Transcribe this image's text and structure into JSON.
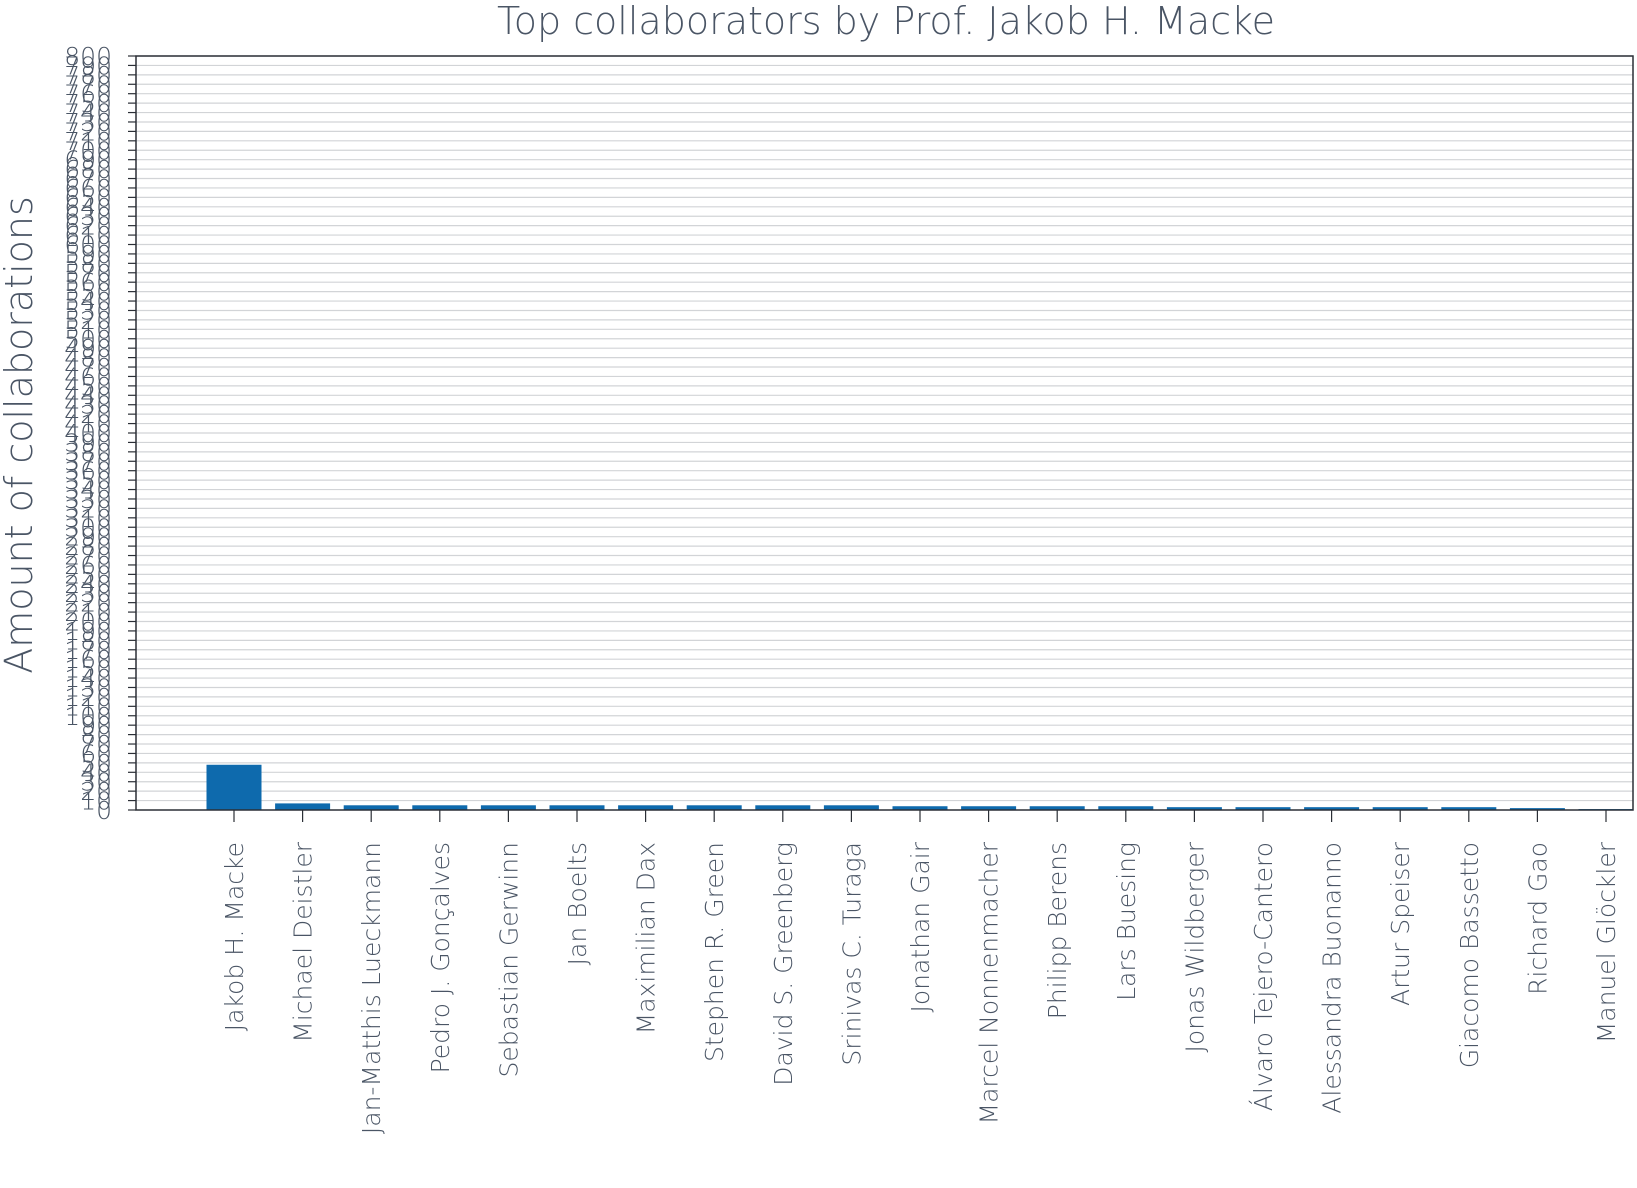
{
  "chart_data": {
    "type": "bar",
    "title": "Top collaborators by Prof. Jakob H. Macke",
    "xlabel": "",
    "ylabel": "Amount of collaborations",
    "ylim": [
      0,
      800
    ],
    "y_tick_step": 10,
    "grid": true,
    "legend": "none",
    "bar_color": "#0e6aad",
    "categories": [
      "Jakob H. Macke",
      "Michael Deistler",
      "Jan-Matthis Lueckmann",
      "Pedro J. Gonçalves",
      "Sebastian Gerwinn",
      "Jan Boelts",
      "Maximilian Dax",
      "Stephen R. Green",
      "David S. Greenberg",
      "Srinivas C. Turaga",
      "Jonathan Gair",
      "Marcel Nonnenmacher",
      "Philipp Berens",
      "Lars Buesing",
      "Jonas Wildberger",
      "Álvaro Tejero-Cantero",
      "Alessandra Buonanno",
      "Artur Speiser",
      "Giacomo Bassetto",
      "Richard Gao",
      "Manuel Glöckler"
    ],
    "values": [
      48,
      7,
      5,
      5,
      5,
      5,
      5,
      5,
      5,
      5,
      4,
      4,
      4,
      4,
      3,
      3,
      3,
      3,
      3,
      2,
      1
    ]
  }
}
